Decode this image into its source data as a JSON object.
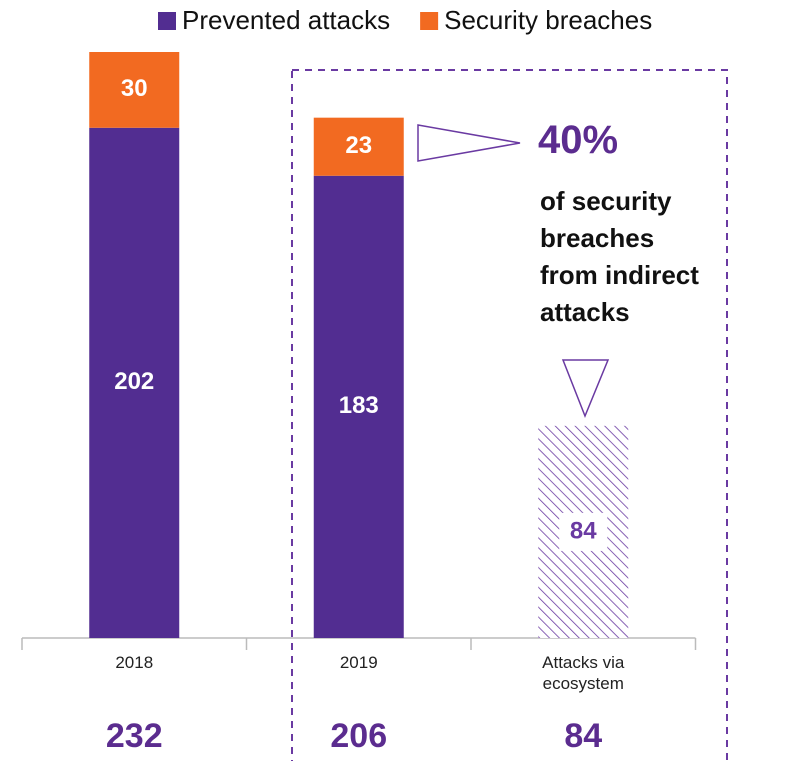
{
  "chart_data": {
    "type": "stacked-bar",
    "categories": [
      "2018",
      "2019",
      "Attacks via ecosystem"
    ],
    "series": [
      {
        "name": "Prevented attacks",
        "color": "#522d91",
        "values": [
          202,
          183,
          null
        ]
      },
      {
        "name": "Security breaches",
        "color": "#f26a21",
        "values": [
          30,
          23,
          null
        ]
      },
      {
        "color": "#6a3aa2",
        "pattern": "hatch",
        "values": [
          null,
          null,
          84
        ]
      }
    ],
    "totals": [
      232,
      206,
      84
    ],
    "annotation": {
      "value": "40%",
      "text": "of security breaches from indirect attacks"
    },
    "legend": "top"
  }
}
